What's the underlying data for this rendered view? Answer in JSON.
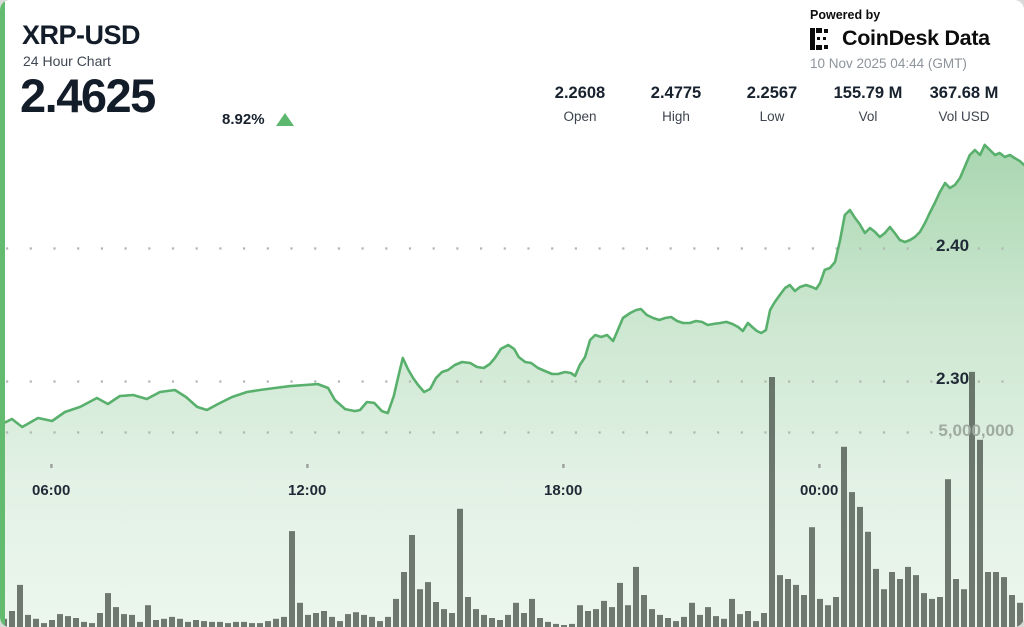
{
  "header": {
    "symbol": "XRP-USD",
    "subtitle": "24 Hour Chart",
    "price": "2.4625",
    "change_pct": "8.92%",
    "direction": "up"
  },
  "powered_by": {
    "label": "Powered by",
    "brand": "CoinDesk Data",
    "timestamp": "10 Nov 2025 04:44 (GMT)"
  },
  "stats": [
    {
      "value": "2.2608",
      "label": "Open"
    },
    {
      "value": "2.4775",
      "label": "High"
    },
    {
      "value": "2.2567",
      "label": "Low"
    },
    {
      "value": "155.79 M",
      "label": "Vol"
    },
    {
      "value": "367.68 M",
      "label": "Vol USD"
    }
  ],
  "colors": {
    "accent_green": "#58b06c",
    "stripe_green": "#62bb6e",
    "fill_green": "#61b46e",
    "volume_bar": "rgba(62,72,62,0.72)",
    "grid_dot": "#b0b8b0",
    "tick_dot": "#9aa19a",
    "label_dark": "#1f2a36",
    "label_gray": "#9fab9f",
    "up_green": "#5cb86e"
  },
  "chart_data": {
    "type": "area",
    "title": "XRP-USD 24 Hour Chart",
    "legend": "none",
    "grid": "dotted-horizontal",
    "x_axis": {
      "unit": "hour_of_day",
      "start_hour": 4.8,
      "end_hour": 28.8,
      "ticks": [
        {
          "hour": 6,
          "label": "06:00"
        },
        {
          "hour": 12,
          "label": "12:00"
        },
        {
          "hour": 18,
          "label": "18:00"
        },
        {
          "hour": 24,
          "label": "00:00"
        }
      ]
    },
    "price_axis": {
      "side": "right",
      "gridlines": [
        {
          "value": 2.4,
          "label": "2.40"
        },
        {
          "value": 2.3,
          "label": "2.30"
        }
      ]
    },
    "volume_axis": {
      "side": "right",
      "gridlines": [
        {
          "value": 5000000,
          "label": "5,000,000"
        }
      ]
    },
    "series": [
      {
        "name": "price",
        "type": "area-line",
        "points": [
          [
            4.8,
            2.2669
          ],
          [
            5.08,
            2.2714
          ],
          [
            5.32,
            2.2654
          ],
          [
            5.69,
            2.2722
          ],
          [
            6.02,
            2.2699
          ],
          [
            6.32,
            2.2767
          ],
          [
            6.68,
            2.2805
          ],
          [
            7.07,
            2.2872
          ],
          [
            7.33,
            2.2827
          ],
          [
            7.61,
            2.2887
          ],
          [
            7.92,
            2.2895
          ],
          [
            8.24,
            2.2865
          ],
          [
            8.55,
            2.2917
          ],
          [
            8.9,
            2.2932
          ],
          [
            9.16,
            2.288
          ],
          [
            9.42,
            2.2805
          ],
          [
            9.65,
            2.2782
          ],
          [
            9.91,
            2.2827
          ],
          [
            10.24,
            2.288
          ],
          [
            10.59,
            2.2917
          ],
          [
            10.89,
            2.2932
          ],
          [
            11.24,
            2.2947
          ],
          [
            11.6,
            2.2962
          ],
          [
            11.95,
            2.297
          ],
          [
            12.25,
            2.2977
          ],
          [
            12.49,
            2.2947
          ],
          [
            12.65,
            2.2857
          ],
          [
            12.89,
            2.2789
          ],
          [
            13.12,
            2.2774
          ],
          [
            13.24,
            2.2782
          ],
          [
            13.4,
            2.2842
          ],
          [
            13.57,
            2.2835
          ],
          [
            13.75,
            2.2774
          ],
          [
            13.89,
            2.2759
          ],
          [
            14.03,
            2.2887
          ],
          [
            14.15,
            2.3053
          ],
          [
            14.24,
            2.3173
          ],
          [
            14.36,
            2.309
          ],
          [
            14.48,
            2.3023
          ],
          [
            14.6,
            2.297
          ],
          [
            14.74,
            2.2917
          ],
          [
            14.88,
            2.294
          ],
          [
            15.02,
            2.3023
          ],
          [
            15.16,
            2.3068
          ],
          [
            15.3,
            2.3083
          ],
          [
            15.46,
            2.312
          ],
          [
            15.63,
            2.3143
          ],
          [
            15.82,
            2.3135
          ],
          [
            15.98,
            2.3105
          ],
          [
            16.14,
            2.3098
          ],
          [
            16.28,
            2.3128
          ],
          [
            16.4,
            2.3173
          ],
          [
            16.54,
            2.3241
          ],
          [
            16.71,
            2.3271
          ],
          [
            16.85,
            2.3241
          ],
          [
            16.96,
            2.318
          ],
          [
            17.11,
            2.3143
          ],
          [
            17.25,
            2.3135
          ],
          [
            17.41,
            2.3098
          ],
          [
            17.57,
            2.3075
          ],
          [
            17.74,
            2.3053
          ],
          [
            17.88,
            2.3053
          ],
          [
            18.04,
            2.3068
          ],
          [
            18.18,
            2.306
          ],
          [
            18.28,
            2.3038
          ],
          [
            18.39,
            2.312
          ],
          [
            18.51,
            2.318
          ],
          [
            18.63,
            2.3308
          ],
          [
            18.75,
            2.3346
          ],
          [
            18.89,
            2.3331
          ],
          [
            19.03,
            2.3346
          ],
          [
            19.17,
            2.3301
          ],
          [
            19.28,
            2.3383
          ],
          [
            19.4,
            2.3474
          ],
          [
            19.57,
            2.3511
          ],
          [
            19.71,
            2.3534
          ],
          [
            19.82,
            2.3541
          ],
          [
            19.96,
            2.3496
          ],
          [
            20.11,
            2.3474
          ],
          [
            20.25,
            2.3459
          ],
          [
            20.39,
            2.3474
          ],
          [
            20.53,
            2.3481
          ],
          [
            20.67,
            2.3451
          ],
          [
            20.81,
            2.3436
          ],
          [
            20.97,
            2.3436
          ],
          [
            21.11,
            2.3451
          ],
          [
            21.25,
            2.3444
          ],
          [
            21.39,
            2.3421
          ],
          [
            21.53,
            2.3429
          ],
          [
            21.68,
            2.3436
          ],
          [
            21.82,
            2.3444
          ],
          [
            21.96,
            2.3429
          ],
          [
            22.1,
            2.3406
          ],
          [
            22.21,
            2.3376
          ],
          [
            22.33,
            2.3436
          ],
          [
            22.43,
            2.3406
          ],
          [
            22.54,
            2.3376
          ],
          [
            22.64,
            2.3361
          ],
          [
            22.75,
            2.3383
          ],
          [
            22.85,
            2.3534
          ],
          [
            22.96,
            2.3594
          ],
          [
            23.08,
            2.3647
          ],
          [
            23.2,
            2.3699
          ],
          [
            23.31,
            2.3722
          ],
          [
            23.43,
            2.3677
          ],
          [
            23.55,
            2.3707
          ],
          [
            23.69,
            2.3722
          ],
          [
            23.83,
            2.3707
          ],
          [
            23.93,
            2.3692
          ],
          [
            24.02,
            2.3737
          ],
          [
            24.13,
            2.3835
          ],
          [
            24.25,
            2.385
          ],
          [
            24.37,
            2.3895
          ],
          [
            24.49,
            2.406
          ],
          [
            24.6,
            2.4248
          ],
          [
            24.72,
            2.4286
          ],
          [
            24.84,
            2.4226
          ],
          [
            24.95,
            2.418
          ],
          [
            25.07,
            2.4113
          ],
          [
            25.19,
            2.415
          ],
          [
            25.31,
            2.412
          ],
          [
            25.42,
            2.4083
          ],
          [
            25.54,
            2.4113
          ],
          [
            25.66,
            2.4158
          ],
          [
            25.77,
            2.4113
          ],
          [
            25.89,
            2.406
          ],
          [
            26.01,
            2.4045
          ],
          [
            26.13,
            2.406
          ],
          [
            26.24,
            2.4083
          ],
          [
            26.36,
            2.412
          ],
          [
            26.48,
            2.4188
          ],
          [
            26.59,
            2.4263
          ],
          [
            26.71,
            2.4338
          ],
          [
            26.83,
            2.4421
          ],
          [
            26.95,
            2.4489
          ],
          [
            27.06,
            2.4451
          ],
          [
            27.18,
            2.4474
          ],
          [
            27.3,
            2.4526
          ],
          [
            27.41,
            2.4609
          ],
          [
            27.53,
            2.4699
          ],
          [
            27.65,
            2.4737
          ],
          [
            27.77,
            2.4699
          ],
          [
            27.88,
            2.4775
          ],
          [
            28.0,
            2.4737
          ],
          [
            28.12,
            2.4699
          ],
          [
            28.23,
            2.4714
          ],
          [
            28.35,
            2.4684
          ],
          [
            28.47,
            2.4699
          ],
          [
            28.58,
            2.4677
          ],
          [
            28.7,
            2.4654
          ],
          [
            28.8,
            2.4625
          ]
        ]
      },
      {
        "name": "volume_millions",
        "type": "bar",
        "values": [
          0.21,
          0.41,
          1.08,
          0.31,
          0.21,
          0.1,
          0.18,
          0.33,
          0.28,
          0.23,
          0.13,
          0.1,
          0.36,
          0.87,
          0.51,
          0.33,
          0.31,
          0.13,
          0.56,
          0.18,
          0.21,
          0.26,
          0.21,
          0.13,
          0.18,
          0.15,
          0.13,
          0.13,
          0.1,
          0.13,
          0.13,
          0.1,
          0.1,
          0.15,
          0.21,
          0.26,
          2.46,
          0.62,
          0.31,
          0.36,
          0.41,
          0.26,
          0.15,
          0.33,
          0.38,
          0.31,
          0.26,
          0.15,
          0.26,
          0.72,
          1.41,
          2.36,
          0.97,
          1.15,
          0.64,
          0.46,
          0.36,
          3.03,
          0.77,
          0.46,
          0.31,
          0.23,
          0.18,
          0.31,
          0.62,
          0.36,
          0.72,
          0.23,
          0.13,
          0.08,
          0.05,
          0.08,
          0.56,
          0.41,
          0.46,
          0.67,
          0.51,
          1.13,
          0.56,
          1.54,
          0.82,
          0.46,
          0.31,
          0.23,
          0.15,
          0.26,
          0.62,
          0.31,
          0.51,
          0.28,
          0.21,
          0.72,
          0.33,
          0.41,
          0.15,
          0.36,
          6.41,
          1.33,
          1.23,
          1.08,
          0.82,
          2.56,
          0.72,
          0.56,
          0.77,
          4.62,
          3.46,
          3.08,
          2.44,
          1.49,
          0.97,
          1.41,
          1.23,
          1.54,
          1.33,
          0.87,
          0.72,
          0.77,
          3.79,
          1.23,
          0.97,
          6.54,
          4.8,
          1.41,
          1.41,
          1.28,
          0.82,
          0.62
        ]
      }
    ]
  }
}
